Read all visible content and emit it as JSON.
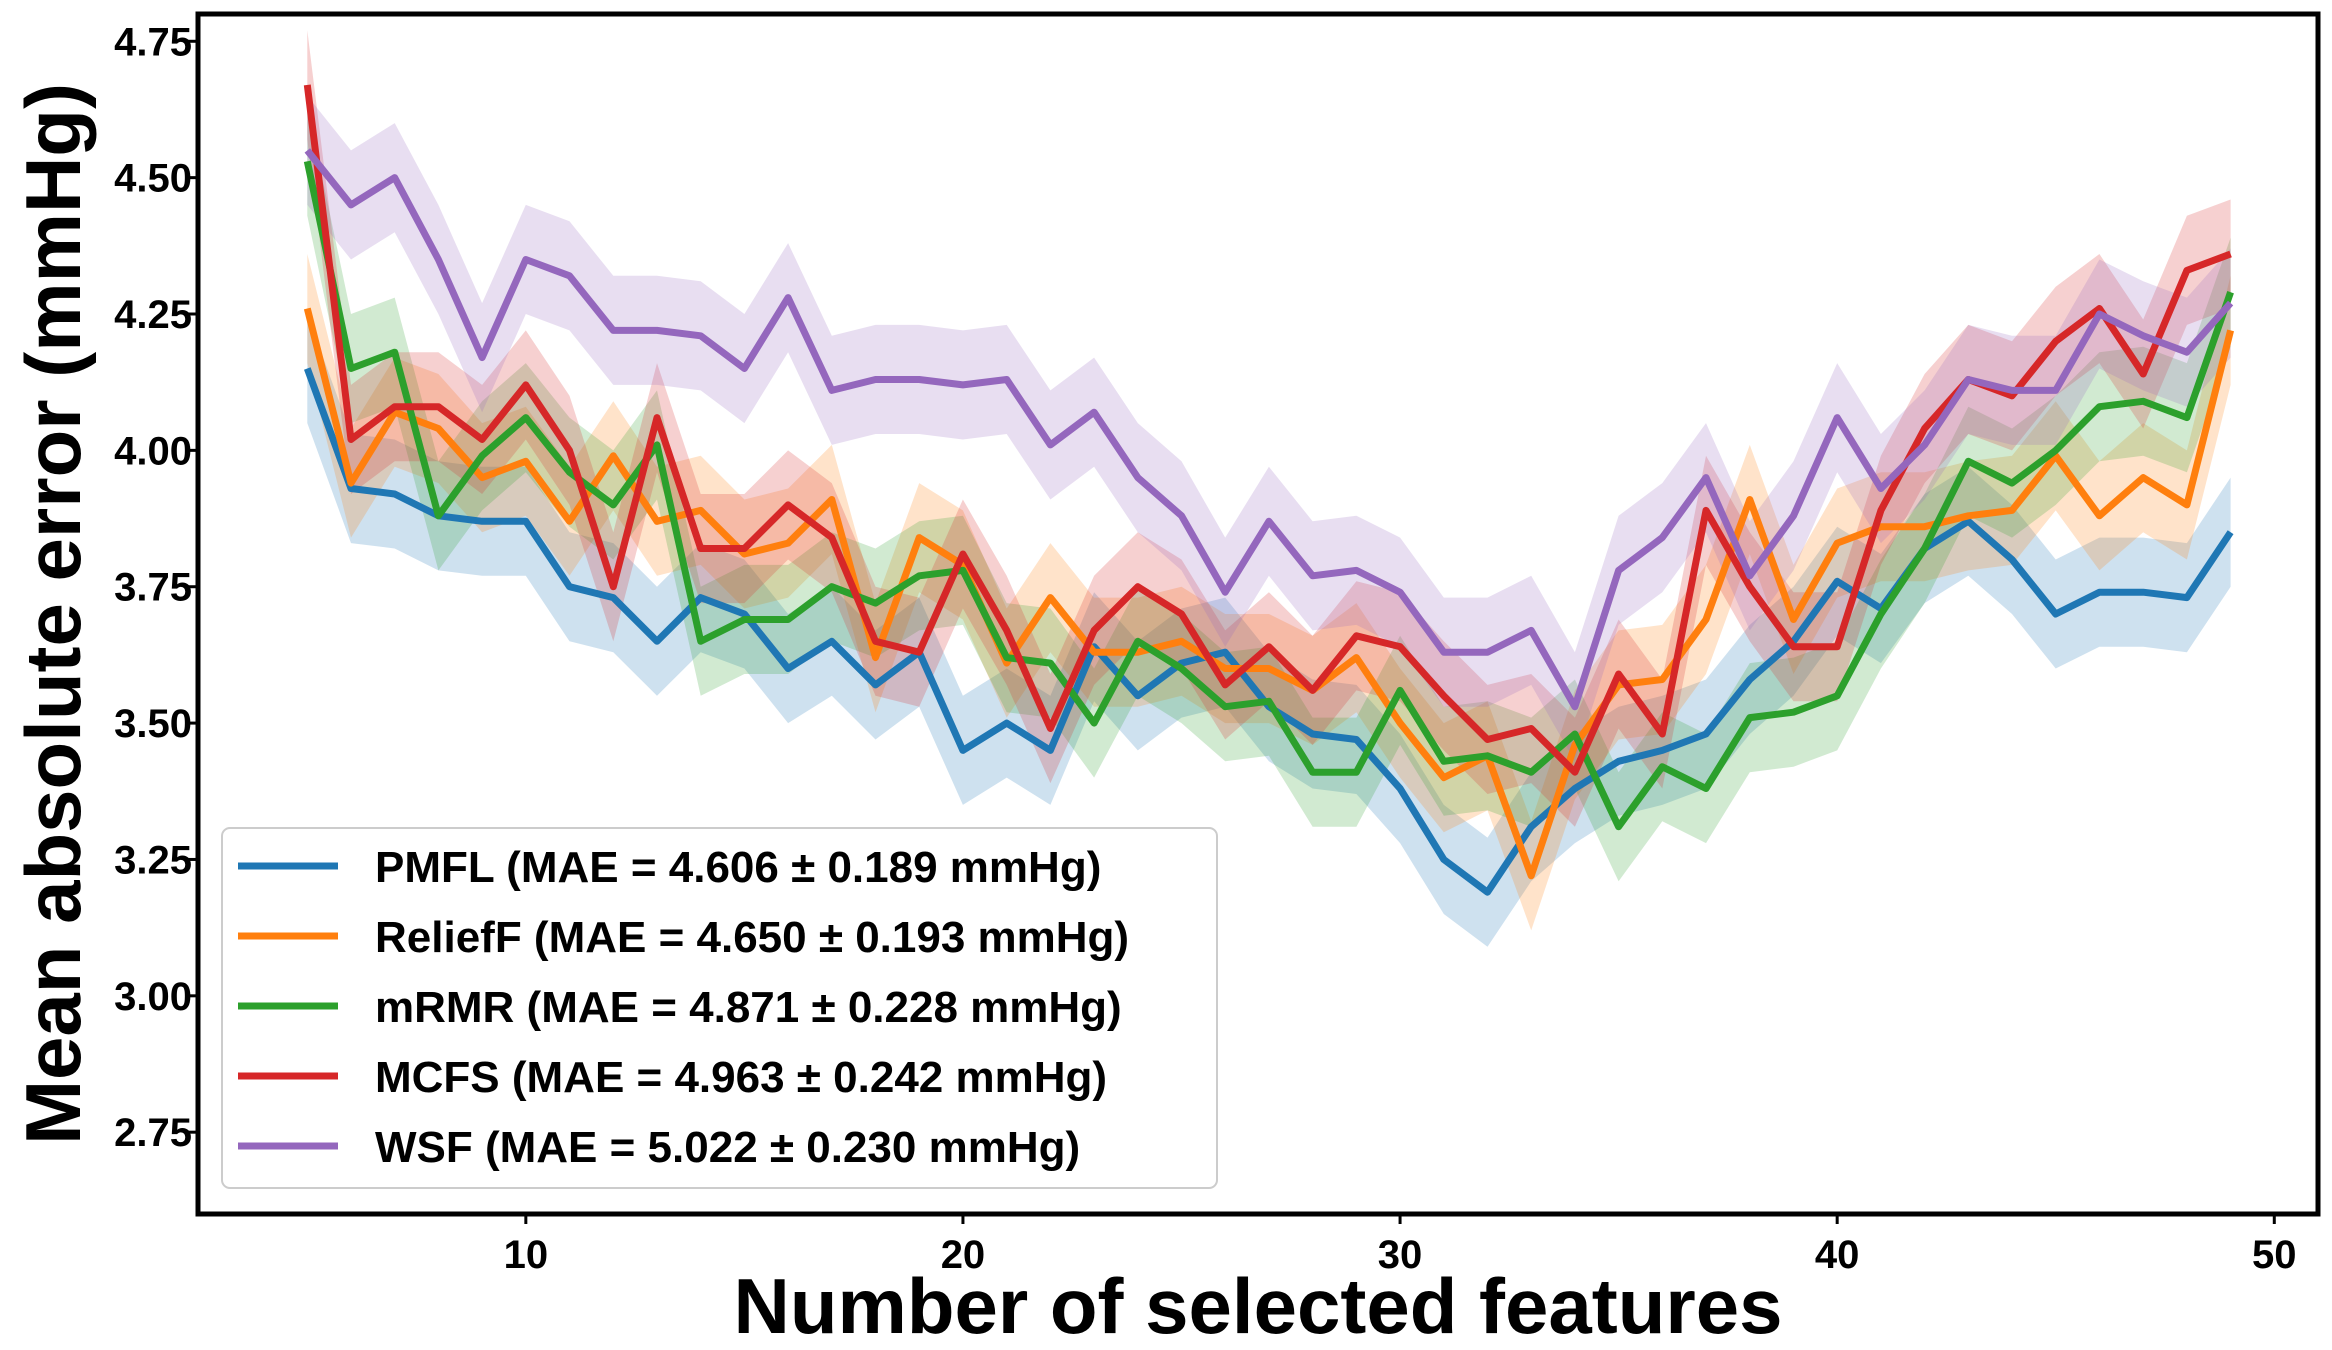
{
  "chart_data": {
    "type": "line",
    "title": "",
    "xlabel": "Number of selected features",
    "ylabel": "Mean absolute error (mmHg)",
    "xlim": [
      2.5,
      51
    ],
    "ylim": [
      2.6,
      4.8
    ],
    "x_ticks": [
      10,
      20,
      30,
      40,
      50
    ],
    "x_tick_labels": [
      "10",
      "20",
      "30",
      "40",
      "50"
    ],
    "y_ticks": [
      2.75,
      3.0,
      3.25,
      3.5,
      3.75,
      4.0,
      4.25,
      4.5,
      4.75
    ],
    "y_tick_labels": [
      "2.75",
      "3.00",
      "3.25",
      "3.50",
      "3.75",
      "4.00",
      "4.25",
      "4.50",
      "4.75"
    ],
    "grid": false,
    "legend_position": "lower-left",
    "shaded_band": "±0.1 around each series",
    "x": [
      5,
      6,
      7,
      8,
      9,
      10,
      11,
      12,
      13,
      14,
      15,
      16,
      17,
      18,
      19,
      20,
      21,
      22,
      23,
      24,
      25,
      26,
      27,
      28,
      29,
      30,
      31,
      32,
      33,
      34,
      35,
      36,
      37,
      38,
      39,
      40,
      41,
      42,
      43,
      44,
      45,
      46,
      47,
      48,
      49
    ],
    "series": [
      {
        "name": "PMFL (MAE = 4.606 ± 0.189 mmHg)",
        "color": "#1f77b4",
        "values": [
          4.15,
          3.93,
          3.92,
          3.88,
          3.87,
          3.87,
          3.75,
          3.73,
          3.65,
          3.73,
          3.7,
          3.6,
          3.65,
          3.57,
          3.63,
          3.45,
          3.5,
          3.45,
          3.64,
          3.55,
          3.61,
          3.63,
          3.53,
          3.48,
          3.47,
          3.38,
          3.25,
          3.19,
          3.31,
          3.38,
          3.43,
          3.45,
          3.48,
          3.58,
          3.65,
          3.76,
          3.71,
          3.82,
          3.87,
          3.8,
          3.7,
          3.74,
          3.74,
          3.73,
          3.85
        ]
      },
      {
        "name": "ReliefF (MAE = 4.650 ± 0.193 mmHg)",
        "color": "#ff7f0e",
        "values": [
          4.26,
          3.94,
          4.07,
          4.04,
          3.95,
          3.98,
          3.87,
          3.99,
          3.87,
          3.89,
          3.81,
          3.83,
          3.91,
          3.62,
          3.84,
          3.79,
          3.61,
          3.73,
          3.63,
          3.63,
          3.65,
          3.6,
          3.6,
          3.56,
          3.62,
          3.5,
          3.4,
          3.44,
          3.22,
          3.46,
          3.57,
          3.58,
          3.69,
          3.91,
          3.69,
          3.83,
          3.86,
          3.86,
          3.88,
          3.89,
          3.99,
          3.88,
          3.95,
          3.9,
          4.22
        ]
      },
      {
        "name": "mRMR (MAE = 4.871 ± 0.228 mmHg)",
        "color": "#2ca02c",
        "values": [
          4.53,
          4.15,
          4.18,
          3.88,
          3.99,
          4.06,
          3.96,
          3.9,
          4.01,
          3.65,
          3.69,
          3.69,
          3.75,
          3.72,
          3.77,
          3.78,
          3.62,
          3.61,
          3.5,
          3.65,
          3.6,
          3.53,
          3.54,
          3.41,
          3.41,
          3.56,
          3.43,
          3.44,
          3.41,
          3.48,
          3.31,
          3.42,
          3.38,
          3.51,
          3.52,
          3.55,
          3.7,
          3.82,
          3.98,
          3.94,
          4.0,
          4.08,
          4.09,
          4.06,
          4.29
        ]
      },
      {
        "name": "MCFS (MAE = 4.963 ± 0.242 mmHg)",
        "color": "#d62728",
        "values": [
          4.67,
          4.02,
          4.08,
          4.08,
          4.02,
          4.12,
          4.0,
          3.75,
          4.06,
          3.82,
          3.82,
          3.9,
          3.84,
          3.65,
          3.63,
          3.81,
          3.67,
          3.49,
          3.67,
          3.75,
          3.7,
          3.57,
          3.64,
          3.56,
          3.66,
          3.64,
          3.55,
          3.47,
          3.49,
          3.41,
          3.59,
          3.48,
          3.89,
          3.75,
          3.64,
          3.64,
          3.89,
          4.04,
          4.13,
          4.1,
          4.2,
          4.26,
          4.14,
          4.33,
          4.36
        ]
      },
      {
        "name": "WSF (MAE = 5.022 ± 0.230 mmHg)",
        "color": "#9467bd",
        "values": [
          4.55,
          4.45,
          4.5,
          4.35,
          4.17,
          4.35,
          4.32,
          4.22,
          4.22,
          4.21,
          4.15,
          4.28,
          4.11,
          4.13,
          4.13,
          4.12,
          4.13,
          4.01,
          4.07,
          3.95,
          3.88,
          3.74,
          3.87,
          3.77,
          3.78,
          3.74,
          3.63,
          3.63,
          3.67,
          3.53,
          3.78,
          3.84,
          3.95,
          3.77,
          3.88,
          4.06,
          3.93,
          4.01,
          4.13,
          4.11,
          4.11,
          4.25,
          4.21,
          4.18,
          4.27
        ]
      }
    ]
  }
}
